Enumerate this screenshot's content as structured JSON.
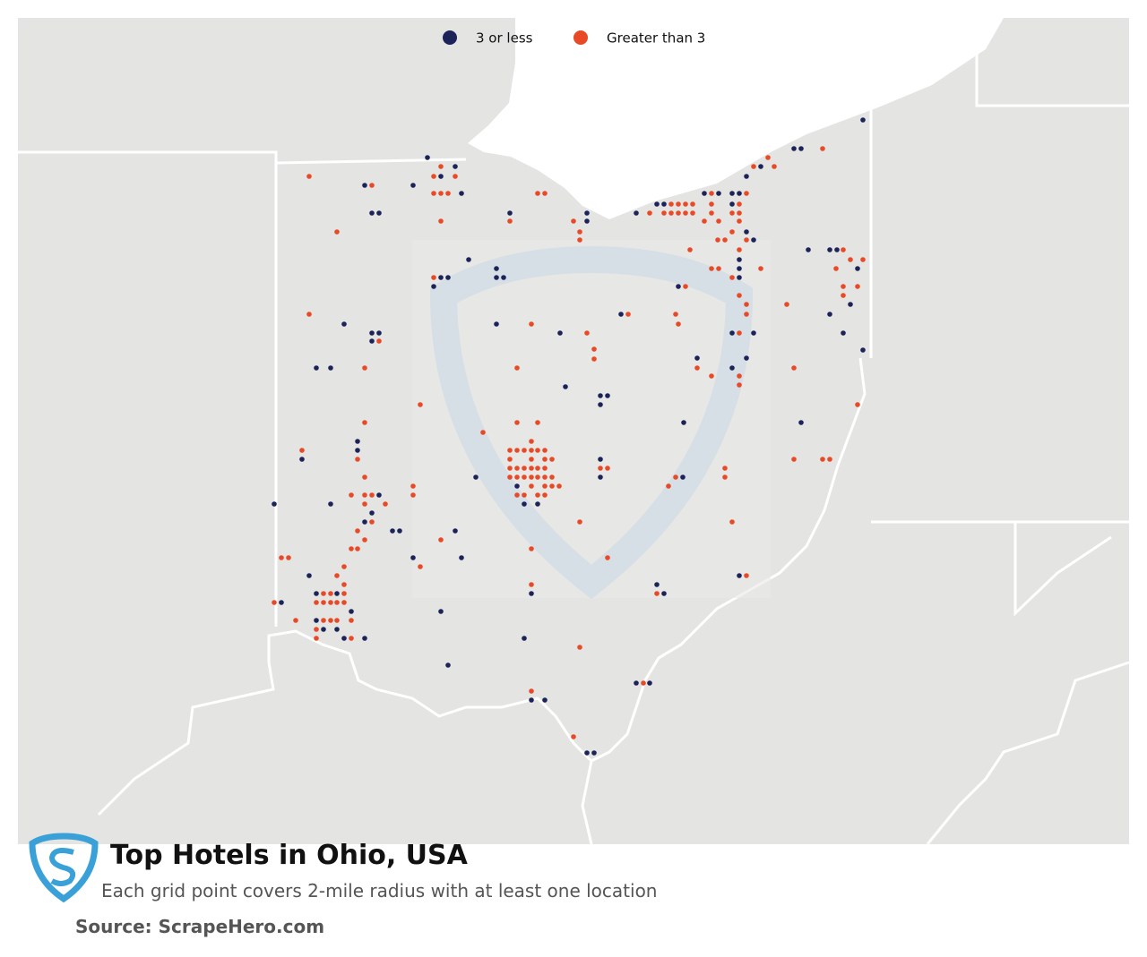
{
  "title": "Top Hotels in Ohio, USA",
  "subtitle": "Each grid point covers 2-mile radius with at least one location",
  "source": "Source: ScrapeHero.com",
  "legend": [
    {
      "name": "3 or less",
      "color": "#1b2359"
    },
    {
      "name": "Greater than 3",
      "color": "#e84a27"
    }
  ]
}
